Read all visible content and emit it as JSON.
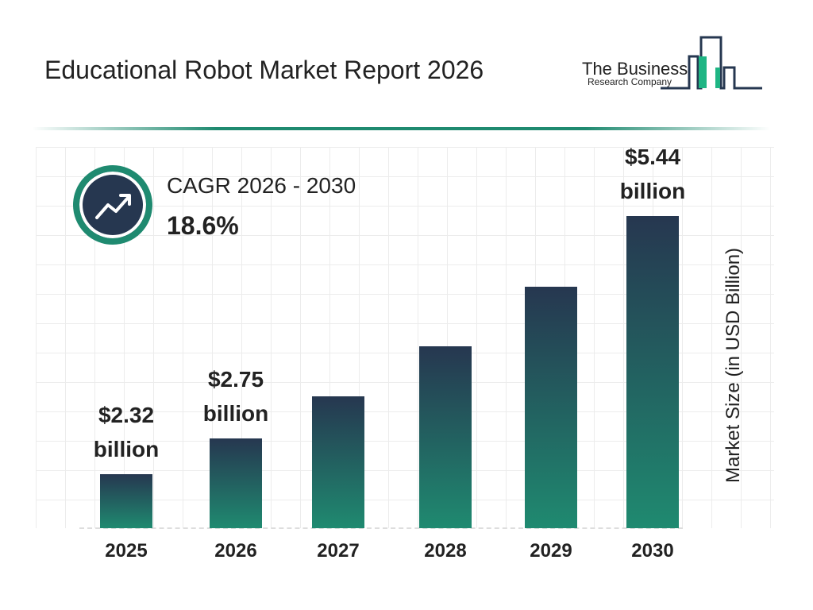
{
  "header": {
    "title": "Educational Robot Market Report 2026",
    "logo_line1": "The Business",
    "logo_line2": "Research Company"
  },
  "cagr": {
    "label": "CAGR 2026 - 2030",
    "value": "18.6%",
    "icon": "trend-up-arrow-icon"
  },
  "colors": {
    "bar_top": "#263750",
    "bar_bottom": "#1f8a70",
    "accent": "#1f8a70"
  },
  "chart_data": {
    "type": "bar",
    "categories": [
      "2025",
      "2026",
      "2027",
      "2028",
      "2029",
      "2030"
    ],
    "values": [
      2.32,
      2.75,
      3.26,
      3.87,
      4.59,
      5.44
    ],
    "data_labels": [
      {
        "category": "2025",
        "text": [
          "$2.32",
          "billion"
        ]
      },
      {
        "category": "2026",
        "text": [
          "$2.75",
          "billion"
        ]
      },
      {
        "category": "2030",
        "text": [
          "$5.44",
          "billion"
        ]
      }
    ],
    "title": "",
    "xlabel": "",
    "ylabel": "Market Size (in USD Billion)",
    "grid": true
  }
}
